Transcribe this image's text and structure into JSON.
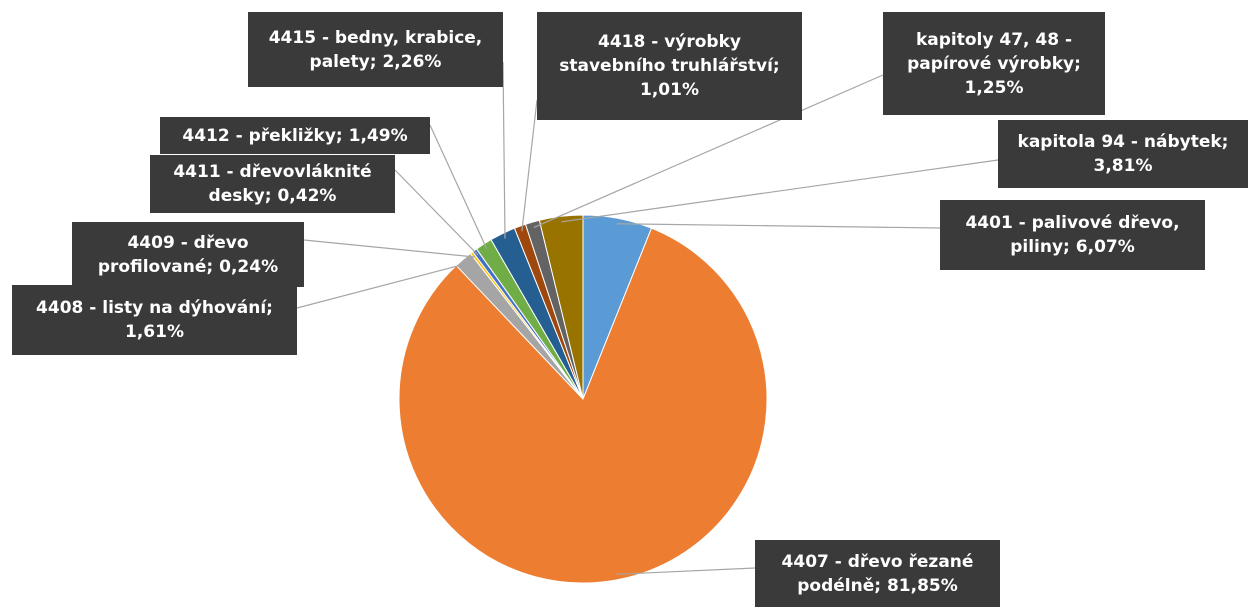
{
  "chart_data": {
    "type": "pie",
    "categories": [
      "4401 - palivové dřevo, piliny;",
      "4407 - dřevo řezané podélně;",
      "4408 - listy na dýhování;",
      "4409 - dřevo profilované;",
      "4411 - dřevovláknité desky;",
      "4412 - překližky;",
      "4415 - bedny, krabice, palety;",
      "4418 - výrobky stavebního truhlářství;",
      "kapitoly 47, 48 - papírové výrobky;",
      "kapitola 94 - nábytek;"
    ],
    "values": [
      6.07,
      81.85,
      1.61,
      0.24,
      0.42,
      1.49,
      2.26,
      1.01,
      1.25,
      3.81
    ],
    "value_labels": [
      "6,07%",
      "81,85%",
      "1,61%",
      "0,24%",
      "0,42%",
      "1,49%",
      "2,26%",
      "1,01%",
      "1,25%",
      "3,81%"
    ],
    "colors": [
      "#5b9bd5",
      "#ed7d31",
      "#a5a5a5",
      "#ffc000",
      "#4472c4",
      "#70ad47",
      "#255e91",
      "#9e480e",
      "#636363",
      "#997300"
    ]
  }
}
